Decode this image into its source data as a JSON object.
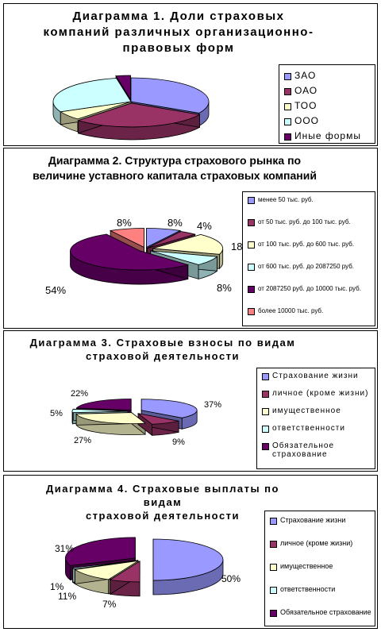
{
  "chart_data": [
    {
      "type": "pie",
      "title": "Диаграмма 1. Доли страховых компаний различных организационно-правовых форм",
      "title_lines": [
        "Диаграмма 1. Доли страховых",
        "компаний различных организационно-",
        "правовых форм"
      ],
      "categories": [
        "ЗАО",
        "ОАО",
        "ТОО",
        "ООО",
        "Иные формы"
      ],
      "values": [
        33,
        29,
        6,
        29,
        3
      ],
      "colors": [
        "#9999FF",
        "#993366",
        "#FFFFCC",
        "#CCFFFF",
        "#660066"
      ],
      "data_labels": []
    },
    {
      "type": "pie",
      "title": "Диаграмма 2. Структура страхового рынка по величине уставного капитала страховых компаний",
      "title_lines": [
        "Диаграмма 2. Структура страхового рынка по",
        "величине уставного капитала страховых компаний"
      ],
      "categories": [
        "менее 50 тыс. руб.",
        "от 50 тыс. руб. до 100 тыс. руб.",
        "от 100 тыс. руб. до 600 тыс. руб.",
        "от 600 тыс. руб. до 2087250 руб.",
        "от 2087250 руб. до 10000 тыс. руб.",
        "более 10000 тыс. руб."
      ],
      "values": [
        8,
        4,
        18,
        8,
        54,
        8
      ],
      "colors": [
        "#9999FF",
        "#993366",
        "#FFFFCC",
        "#CCFFFF",
        "#660066",
        "#FF8080"
      ],
      "data_labels": [
        "8%",
        "4%",
        "18%",
        "8%",
        "54%",
        "8%"
      ]
    },
    {
      "type": "pie",
      "title": "Диаграмма 3. Страховые взносы по видам страховой деятельности",
      "title_lines": [
        "Диаграмма 3. Страховые взносы по видам",
        "страховой деятельности"
      ],
      "categories": [
        "Страхование жизни",
        "личное (кроме жизни)",
        "имущественное",
        "ответственности",
        "Обязательное страхование"
      ],
      "values": [
        37,
        9,
        27,
        5,
        22
      ],
      "colors": [
        "#9999FF",
        "#993366",
        "#FFFFCC",
        "#CCFFFF",
        "#660066"
      ],
      "data_labels": [
        "37%",
        "9%",
        "27%",
        "5%",
        "22%"
      ]
    },
    {
      "type": "pie",
      "title": "Диаграмма 4. Страховые выплаты по видам страховой деятельности",
      "title_lines": [
        "Диаграмма 4. Страховые выплаты по видам",
        "страховой деятельности"
      ],
      "categories": [
        "Страхование жизни",
        "личное (кроме жизни)",
        "имущественное",
        "ответственности",
        "Обязательное страхование"
      ],
      "values": [
        50,
        7,
        11,
        1,
        31
      ],
      "colors": [
        "#9999FF",
        "#993366",
        "#FFFFCC",
        "#CCFFFF",
        "#660066"
      ],
      "data_labels": [
        "50%",
        "7%",
        "11%",
        "1%",
        "31%"
      ]
    }
  ]
}
